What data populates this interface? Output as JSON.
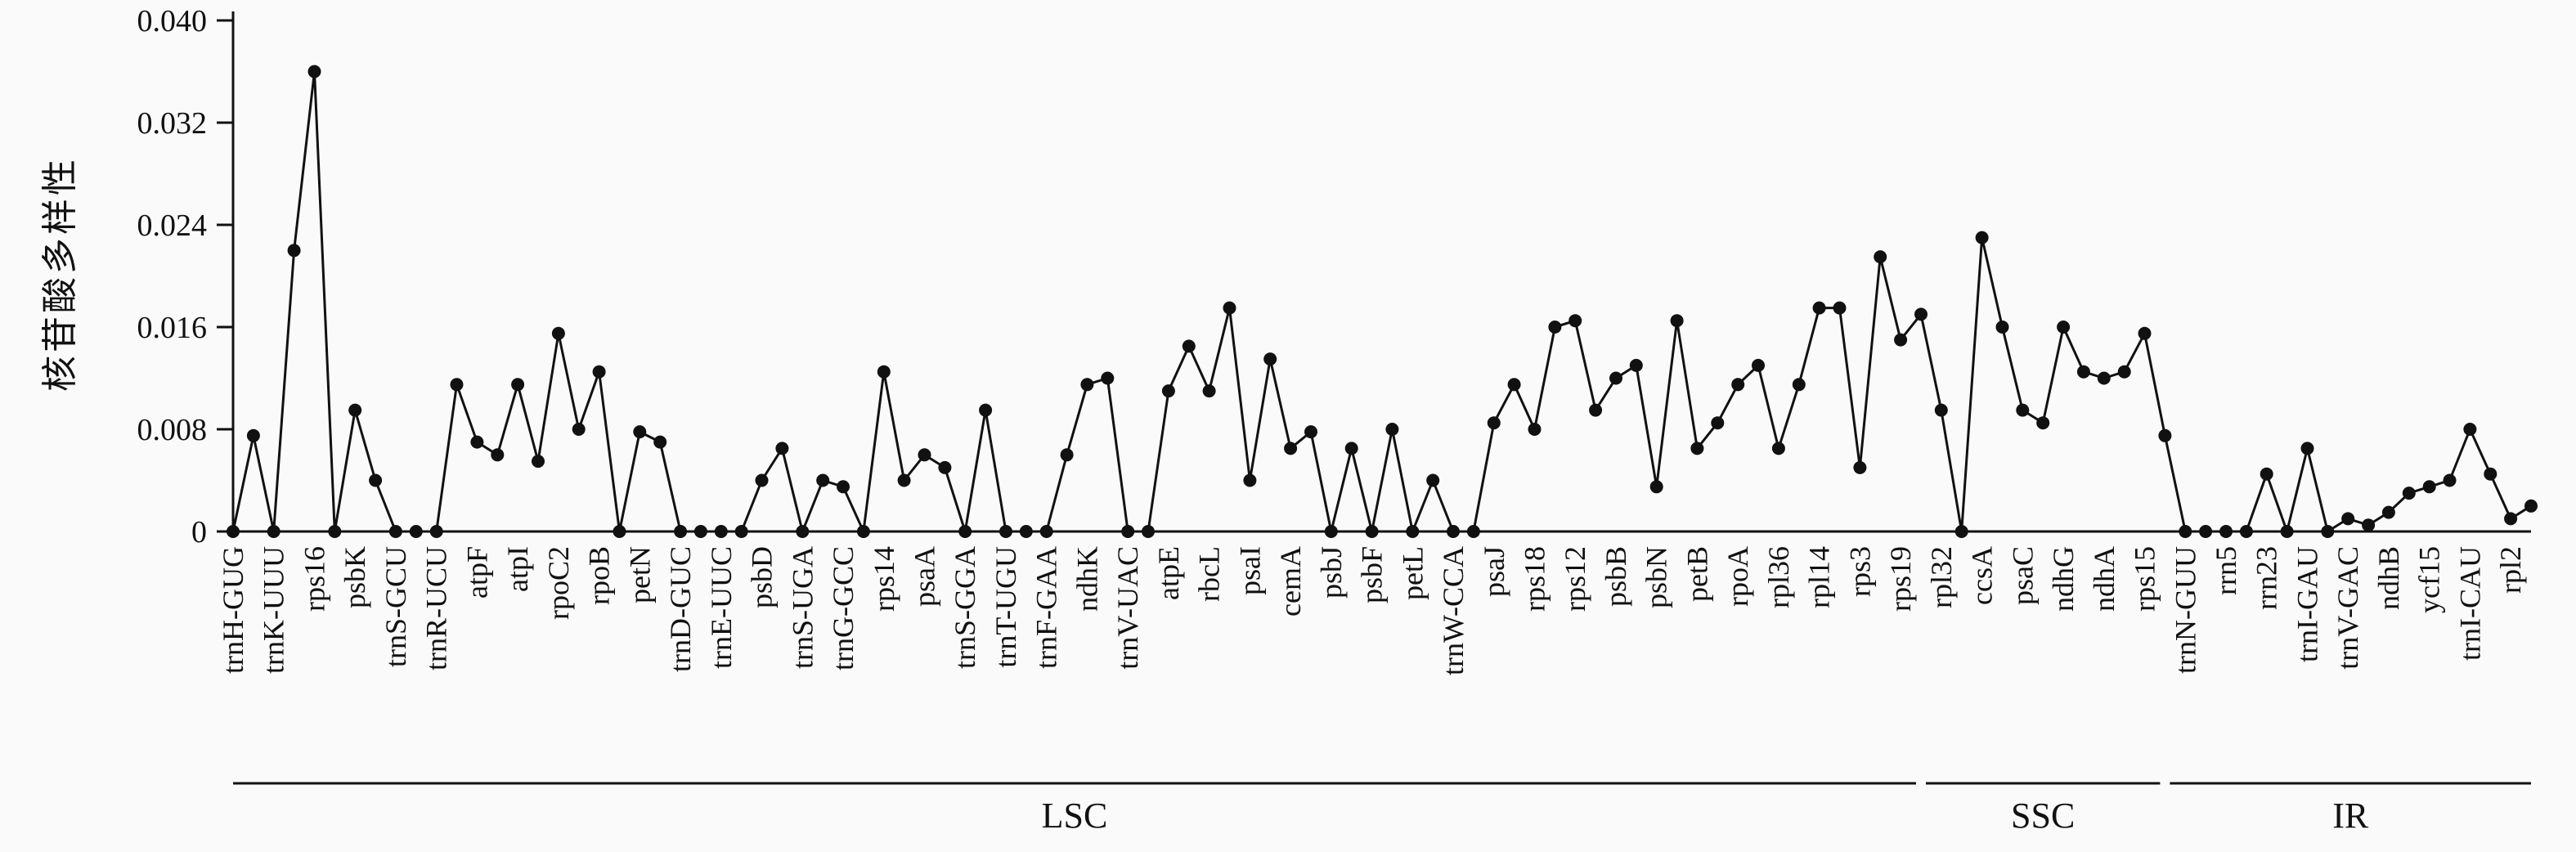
{
  "chart_data": {
    "type": "line",
    "title": "",
    "ylabel": "核苷酸多样性",
    "xlabel": "",
    "ylim": [
      0,
      0.04
    ],
    "yticks": [
      0,
      0.008,
      0.016,
      0.024,
      0.032,
      0.04
    ],
    "ytick_labels": [
      "0",
      "0.008",
      "0.016",
      "0.024",
      "0.032",
      "0.040"
    ],
    "grid": "off",
    "legend": "none",
    "line_color": "#111111",
    "marker_color": "#111111",
    "categories": [
      "trnH-GUG",
      "trnK-UUU",
      "rps16",
      "psbK",
      "trnS-GCU",
      "trnR-UCU",
      "atpF",
      "atpI",
      "rpoC2",
      "rpoB",
      "petN",
      "trnD-GUC",
      "trnE-UUC",
      "psbD",
      "trnS-UGA",
      "trnG-GCC",
      "rps14",
      "psaA",
      "trnS-GGA",
      "trnT-UGU",
      "trnF-GAA",
      "ndhK",
      "trnV-UAC",
      "atpE",
      "rbcL",
      "psaI",
      "cemA",
      "psbJ",
      "psbF",
      "petL",
      "trnW-CCA",
      "psaJ",
      "rps18",
      "rps12",
      "psbB",
      "psbN",
      "petB",
      "rpoA",
      "rpl36",
      "rpl14",
      "rps3",
      "rps19",
      "rpl32",
      "ccsA",
      "psaC",
      "ndhG",
      "ndhA",
      "rps15",
      "trnN-GUU",
      "rrn5",
      "rrn23",
      "trnI-GAU",
      "trnV-GAC",
      "ndhB",
      "ycf15",
      "trnI-CAU",
      "rpl2"
    ],
    "points": [
      0,
      0.0075,
      0,
      0.022,
      0.036,
      0,
      0.0095,
      0.004,
      0,
      0,
      0,
      0.0115,
      0.007,
      0.006,
      0.0115,
      0.0055,
      0.0155,
      0.008,
      0.0125,
      0,
      0.0078,
      0.007,
      0,
      0,
      0,
      0,
      0.004,
      0.0065,
      0,
      0.004,
      0.0035,
      0,
      0.0125,
      0.004,
      0.006,
      0.005,
      0,
      0.0095,
      0,
      0,
      0,
      0.006,
      0.0115,
      0.012,
      0,
      0,
      0.011,
      0.0145,
      0.011,
      0.0175,
      0.004,
      0.0135,
      0.0065,
      0.0078,
      0,
      0.0065,
      0,
      0.008,
      0,
      0.004,
      0,
      0,
      0.0085,
      0.0115,
      0.008,
      0.016,
      0.0165,
      0.0095,
      0.012,
      0.013,
      0.0035,
      0.0165,
      0.0065,
      0.0085,
      0.0115,
      0.013,
      0.0065,
      0.0115,
      0.0175,
      0.0175,
      0.005,
      0.0215,
      0.015,
      0.017,
      0.0095,
      0,
      0.023,
      0.016,
      0.0095,
      0.0085,
      0.016,
      0.0125,
      0.012,
      0.0125,
      0.0155,
      0.0075,
      0,
      0,
      0,
      0,
      0.0045,
      0,
      0.0065,
      0,
      0.001,
      0.0005,
      0.0015,
      0.003,
      0.0035,
      0.004,
      0.008,
      0.0045,
      0.001,
      0.002
    ],
    "category_point_step": 2,
    "regions": [
      {
        "label": "LSC",
        "from_point": 0,
        "to_point": 83
      },
      {
        "label": "SSC",
        "from_point": 83,
        "to_point": 95
      },
      {
        "label": "IR",
        "from_point": 95,
        "to_point": 113
      }
    ]
  }
}
